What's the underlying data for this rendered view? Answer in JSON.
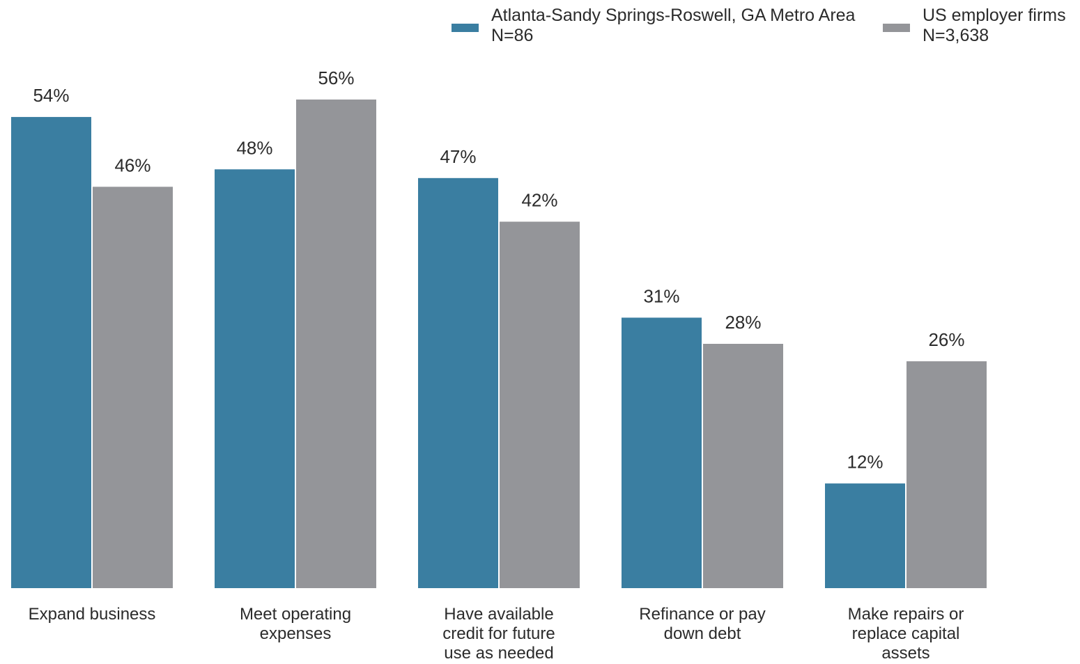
{
  "chart_data": {
    "type": "bar",
    "categories": [
      [
        "Expand business"
      ],
      [
        "Meet operating",
        "expenses"
      ],
      [
        "Have available",
        "credit for future",
        "use as needed"
      ],
      [
        "Refinance or pay",
        "down debt"
      ],
      [
        "Make repairs or",
        "replace capital",
        "assets"
      ]
    ],
    "series": [
      {
        "name": "Atlanta-Sandy Springs-Roswell, GA Metro Area",
        "note": "N=86",
        "color": "#3a7ea1",
        "values": [
          54,
          48,
          47,
          31,
          12
        ],
        "labels": [
          "54%",
          "48%",
          "47%",
          "31%",
          "12%"
        ]
      },
      {
        "name": "US employer firms",
        "note": "N=3,638",
        "color": "#949599",
        "values": [
          46,
          56,
          42,
          28,
          26
        ],
        "labels": [
          "46%",
          "56%",
          "42%",
          "28%",
          "26%"
        ]
      }
    ],
    "title": "",
    "xlabel": "",
    "ylabel": "",
    "ylim": [
      0,
      56
    ],
    "grid": false,
    "legend": "top-right"
  }
}
